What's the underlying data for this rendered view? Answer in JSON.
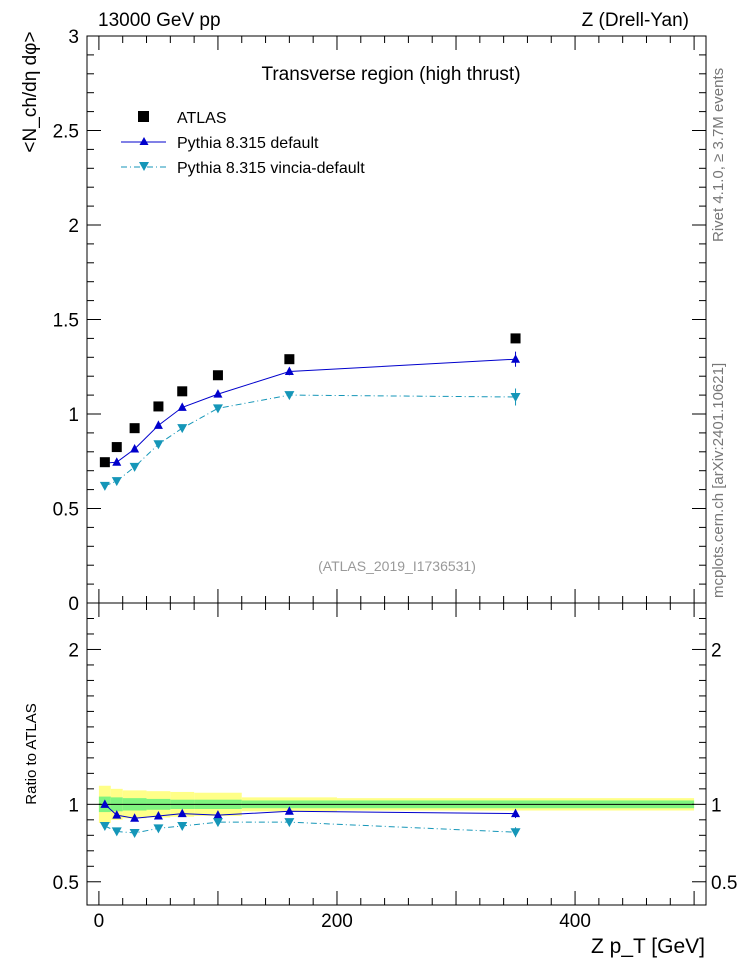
{
  "header": {
    "left": "13000 GeV pp",
    "right": "Z (Drell-Yan)"
  },
  "side": {
    "rivet": "Rivet 4.1.0, ≥ 3.7M events",
    "mcplots": "mcplots.cern.ch [arXiv:2401.10621]"
  },
  "chart_data": {
    "type": "scatter",
    "title": "Transverse region (high thrust)",
    "watermark": "(ATLAS_2019_I1736531)",
    "ylabel_main": "<N_ch/dη dφ>",
    "ylabel_ratio": "Ratio to ATLAS",
    "xlabel": "Z p_T [GeV]",
    "xlim": [
      -10,
      510
    ],
    "ylim_main": [
      0,
      3
    ],
    "ylim_ratio": [
      0.35,
      2.3
    ],
    "x_ticks": [
      "0",
      "200",
      "400"
    ],
    "y_ticks_main": [
      "0",
      "0.5",
      "1",
      "1.5",
      "2",
      "2.5",
      "3"
    ],
    "y_ticks_ratio": [
      "0.5",
      "1",
      "2"
    ],
    "x": [
      5,
      15,
      30,
      50,
      70,
      100,
      160,
      350
    ],
    "x_widths": [
      5,
      5,
      10,
      10,
      10,
      20,
      40,
      150
    ],
    "series": [
      {
        "name": "ATLAS",
        "color": "#000000",
        "marker": "square",
        "values": [
          0.745,
          0.825,
          0.925,
          1.04,
          1.12,
          1.205,
          1.29,
          1.4
        ],
        "ratio": [
          1,
          1,
          1,
          1,
          1,
          1,
          1,
          1
        ],
        "band_stat": [
          0.05,
          0.045,
          0.04,
          0.035,
          0.03,
          0.03,
          0.025,
          0.025
        ],
        "band_total": [
          0.12,
          0.1,
          0.09,
          0.085,
          0.08,
          0.075,
          0.045,
          0.04
        ]
      },
      {
        "name": "Pythia 8.315 default",
        "color": "#0000cc",
        "marker": "triangle-up",
        "values": [
          0.74,
          0.745,
          0.815,
          0.94,
          1.035,
          1.105,
          1.225,
          1.29
        ],
        "ratio": [
          1.0,
          0.93,
          0.91,
          0.925,
          0.94,
          0.93,
          0.955,
          0.94
        ],
        "errors": [
          0.005,
          0.005,
          0.005,
          0.008,
          0.008,
          0.01,
          0.02,
          0.04
        ]
      },
      {
        "name": "Pythia 8.315 vincia-default",
        "color": "#1596b8",
        "marker": "triangle-down",
        "values": [
          0.62,
          0.645,
          0.72,
          0.84,
          0.925,
          1.03,
          1.1,
          1.09
        ],
        "ratio": [
          0.86,
          0.825,
          0.815,
          0.845,
          0.86,
          0.885,
          0.885,
          0.82
        ],
        "errors": [
          0.005,
          0.005,
          0.005,
          0.008,
          0.008,
          0.01,
          0.015,
          0.045
        ]
      }
    ]
  }
}
